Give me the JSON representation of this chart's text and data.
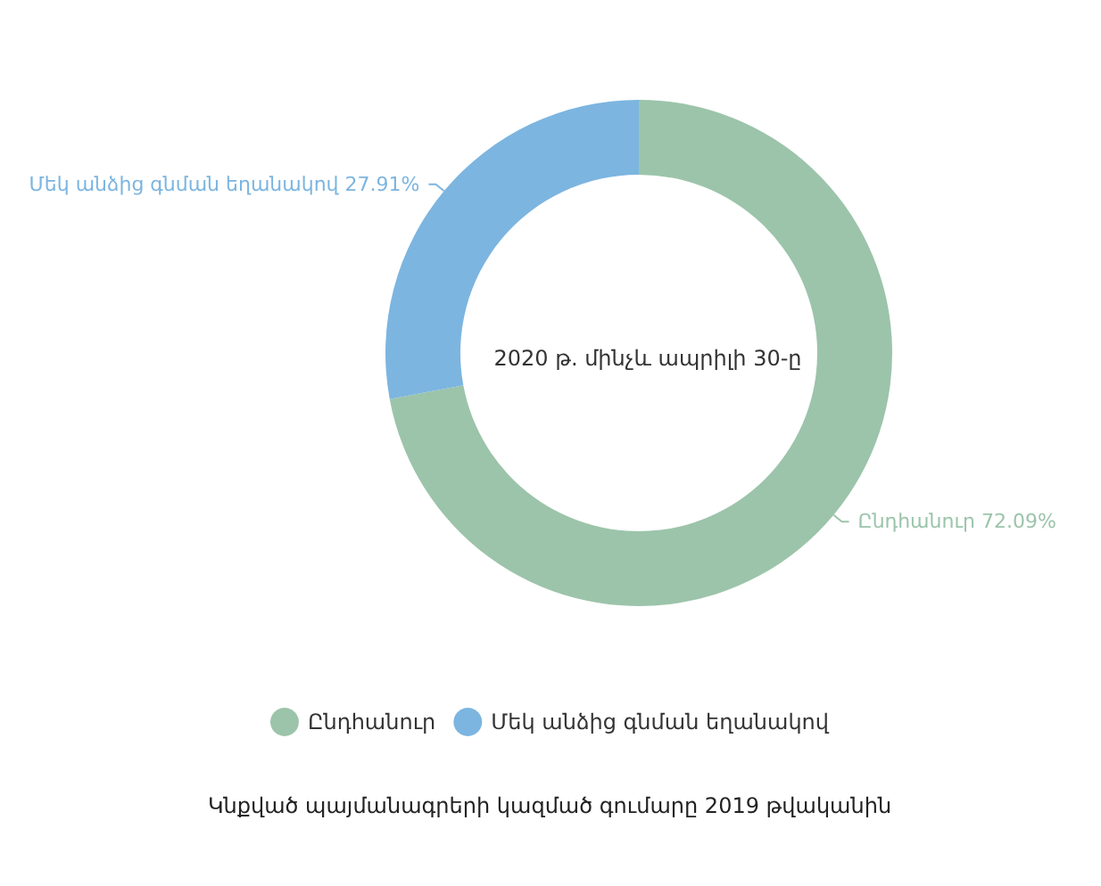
{
  "chart_data": {
    "type": "donut",
    "title": "2020 թ. մինչև ապրիլի 30-ը",
    "categories": [
      "Ընդհանուր",
      "Մեկ անձից գնման եղանակով"
    ],
    "values": [
      72.09,
      27.91
    ],
    "colors": [
      "#9cc4aa",
      "#7cb5e0"
    ],
    "value_labels": [
      "72.09%",
      "27.91%"
    ],
    "legend": "bottom",
    "annotations": [
      "Կնքված պայմանագրերի կազմած գումարը 2019 թվականին"
    ]
  }
}
